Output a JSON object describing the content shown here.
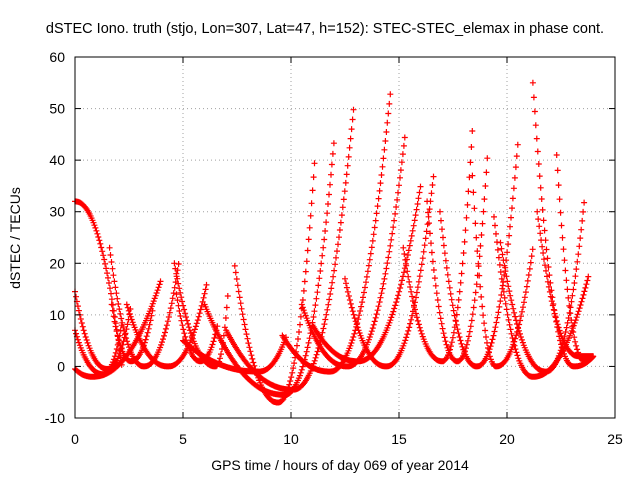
{
  "chart_data": {
    "type": "scatter",
    "title": "dSTEC Iono. truth (stjo, Lon=307, Lat=47, h=152): STEC-STEC_elemax in phase cont.",
    "xlabel": "GPS time / hours of day 069 of year 2014",
    "ylabel": "dSTEC  / TECUs",
    "xlim": [
      0,
      25
    ],
    "ylim": [
      -10,
      60
    ],
    "xticks": [
      0,
      5,
      10,
      15,
      20,
      25
    ],
    "yticks": [
      -10,
      0,
      10,
      20,
      30,
      40,
      50,
      60
    ],
    "grid": true,
    "legend": "none",
    "marker": "plus",
    "color": "#ff0000",
    "arcs": [
      {
        "start": 0.0,
        "min_t": 0.0,
        "end": 2.2,
        "start_val": 32,
        "min_val": 32,
        "end_val": -1
      },
      {
        "start": 0.0,
        "min_t": 0.8,
        "end": 4.0,
        "start_val": -0.5,
        "min_val": -2,
        "end_val": 17
      },
      {
        "start": 0.0,
        "min_t": 1.5,
        "end": 2.6,
        "start_val": 14.5,
        "min_val": -0.5,
        "end_val": 12
      },
      {
        "start": 0.0,
        "min_t": 1.3,
        "end": 2.2,
        "start_val": 7,
        "min_val": -1.5,
        "end_val": 9
      },
      {
        "start": 1.6,
        "min_t": 3.2,
        "end": 4.8,
        "start_val": 23,
        "min_val": 0,
        "end_val": 20
      },
      {
        "start": 1.7,
        "min_t": 2.6,
        "end": 3.6,
        "start_val": 12,
        "min_val": 1,
        "end_val": 11
      },
      {
        "start": 2.4,
        "min_t": 4.3,
        "end": 6.1,
        "start_val": 12,
        "min_val": 0,
        "end_val": 16
      },
      {
        "start": 4.6,
        "min_t": 6.5,
        "end": 7.1,
        "start_val": 20,
        "min_val": 0,
        "end_val": 15
      },
      {
        "start": 4.7,
        "min_t": 5.8,
        "end": 6.6,
        "start_val": 14,
        "min_val": 1,
        "end_val": 8
      },
      {
        "start": 7.4,
        "min_t": 9.4,
        "end": 11.1,
        "start_val": 19.5,
        "min_val": -7,
        "end_val": 40
      },
      {
        "start": 5.0,
        "min_t": 8.5,
        "end": 9.8,
        "start_val": 5,
        "min_val": -1,
        "end_val": 6
      },
      {
        "start": 6.0,
        "min_t": 9.7,
        "end": 12.0,
        "start_val": 12,
        "min_val": -5.5,
        "end_val": 44
      },
      {
        "start": 7.0,
        "min_t": 10.1,
        "end": 12.9,
        "start_val": 7,
        "min_val": -4.5,
        "end_val": 50
      },
      {
        "start": 9.6,
        "min_t": 11.8,
        "end": 14.6,
        "start_val": 6,
        "min_val": -1,
        "end_val": 53
      },
      {
        "start": 10.5,
        "min_t": 12.6,
        "end": 15.3,
        "start_val": 12,
        "min_val": 0,
        "end_val": 45.5
      },
      {
        "start": 11.0,
        "min_t": 13.1,
        "end": 16.0,
        "start_val": 8,
        "min_val": 1,
        "end_val": 35
      },
      {
        "start": 12.5,
        "min_t": 14.4,
        "end": 16.6,
        "start_val": 17,
        "min_val": 0,
        "end_val": 37
      },
      {
        "start": 15.2,
        "min_t": 17.0,
        "end": 18.4,
        "start_val": 23,
        "min_val": 1,
        "end_val": 46
      },
      {
        "start": 16.3,
        "min_t": 17.7,
        "end": 19.1,
        "start_val": 32,
        "min_val": 1,
        "end_val": 41
      },
      {
        "start": 16.9,
        "min_t": 18.6,
        "end": 20.5,
        "start_val": 30,
        "min_val": 0,
        "end_val": 43
      },
      {
        "start": 18.4,
        "min_t": 19.5,
        "end": 21.2,
        "start_val": 37,
        "min_val": 0,
        "end_val": 23
      },
      {
        "start": 19.4,
        "min_t": 21.2,
        "end": 23.8,
        "start_val": 29,
        "min_val": -2,
        "end_val": 18
      },
      {
        "start": 19.7,
        "min_t": 21.8,
        "end": 23.6,
        "start_val": 24,
        "min_val": -1,
        "end_val": 33
      },
      {
        "start": 21.2,
        "min_t": 23.1,
        "end": 24.0,
        "start_val": 55,
        "min_val": 0,
        "end_val": 2
      },
      {
        "start": 21.4,
        "min_t": 23.3,
        "end": 24.0,
        "start_val": 30,
        "min_val": 2,
        "end_val": 2
      },
      {
        "start": 22.3,
        "min_t": 23.6,
        "end": 24.0,
        "start_val": 41,
        "min_val": 1,
        "end_val": 2
      }
    ]
  }
}
